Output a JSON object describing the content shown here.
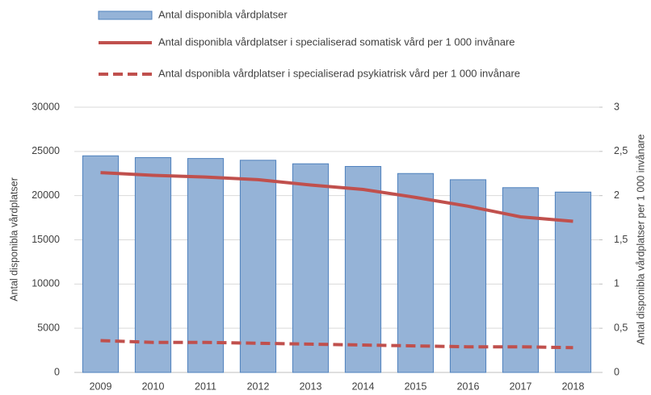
{
  "chart_data": {
    "type": "bar",
    "categories": [
      "2009",
      "2010",
      "2011",
      "2012",
      "2013",
      "2014",
      "2015",
      "2016",
      "2017",
      "2018"
    ],
    "series": [
      {
        "name": "Antal disponibla vårdplatser",
        "type": "bar",
        "color": "#95b3d7",
        "edge": "#4f81bd",
        "values": [
          24500,
          24300,
          24200,
          24000,
          23600,
          23300,
          22500,
          21800,
          20900,
          20400
        ]
      },
      {
        "name": "Antal disponibla vårdplatser i specialiserad somatisk vård per 1 000 invånare",
        "type": "line",
        "axis": "y2",
        "color": "#c0504d",
        "dashed": false,
        "values": [
          2.26,
          2.23,
          2.21,
          2.18,
          2.12,
          2.07,
          1.98,
          1.88,
          1.76,
          1.71
        ]
      },
      {
        "name": "Antal dsponibla vårdplatser i specialiserad psykiatrisk vård per 1 000 invånare",
        "type": "line",
        "axis": "y2",
        "color": "#c0504d",
        "dashed": true,
        "values": [
          0.36,
          0.34,
          0.34,
          0.33,
          0.32,
          0.31,
          0.3,
          0.29,
          0.29,
          0.28
        ]
      }
    ],
    "ylabel": "Antal disponibla vårdplatser",
    "y2label": "Antal disponibla vårdplatser per 1 000 invånare",
    "ylim": [
      0,
      30000
    ],
    "yticks": [
      0,
      5000,
      10000,
      15000,
      20000,
      25000,
      30000
    ],
    "y2lim": [
      0,
      3
    ],
    "y2ticks": [
      0,
      {
        "value": 0.5,
        "label": "0,5"
      },
      1,
      {
        "value": 1.5,
        "label": "1,5"
      },
      2,
      {
        "value": 2.5,
        "label": "2,5"
      },
      3
    ],
    "grid": true,
    "legend": "top"
  }
}
